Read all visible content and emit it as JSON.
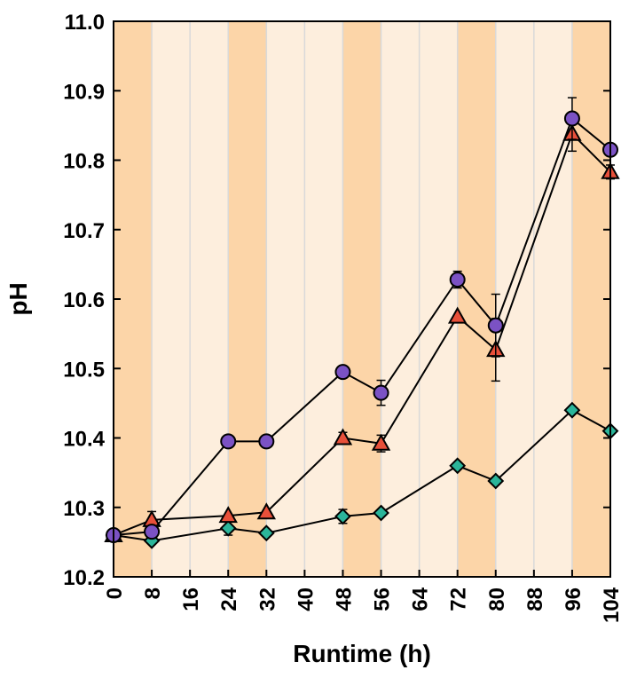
{
  "chart_data": {
    "type": "line",
    "title": "",
    "xlabel": "Runtime (h)",
    "ylabel": "pH",
    "xlim": [
      0,
      104
    ],
    "ylim": [
      10.2,
      11.0
    ],
    "xticks": [
      0,
      8,
      16,
      24,
      32,
      40,
      48,
      56,
      64,
      72,
      80,
      88,
      96,
      104
    ],
    "xtick_labels": [
      "0",
      "8",
      "16",
      "24",
      "32",
      "40",
      "48",
      "56",
      "64",
      "72",
      "80",
      "88",
      "96",
      "104"
    ],
    "yticks": [
      10.2,
      10.3,
      10.4,
      10.5,
      10.6,
      10.7,
      10.8,
      10.9,
      11.0
    ],
    "ytick_labels": [
      "10.2",
      "10.3",
      "10.4",
      "10.5",
      "10.6",
      "10.7",
      "10.8",
      "10.9",
      "11.0"
    ],
    "grid": "vertical lines every 8 h",
    "legend": "none",
    "background_bands": {
      "dark_color": "#fcd5a8",
      "light_color": "#fdeedd",
      "dark_intervals": [
        [
          0,
          8
        ],
        [
          24,
          32
        ],
        [
          48,
          56
        ],
        [
          72,
          80
        ],
        [
          96,
          104
        ]
      ]
    },
    "series": [
      {
        "name": "circles",
        "marker": "circle",
        "color": "#7b52c4",
        "x": [
          0,
          8,
          24,
          32,
          48,
          56,
          72,
          80,
          96,
          104
        ],
        "y": [
          10.26,
          10.265,
          10.395,
          10.395,
          10.495,
          10.465,
          10.628,
          10.562,
          10.86,
          10.815
        ],
        "err": [
          0,
          0,
          0.008,
          0.008,
          0,
          0.018,
          0.012,
          0.045,
          0.03,
          0
        ]
      },
      {
        "name": "triangles",
        "marker": "triangle",
        "color": "#e8503a",
        "x": [
          0,
          8,
          24,
          32,
          48,
          56,
          72,
          80,
          96,
          104
        ],
        "y": [
          10.26,
          10.282,
          10.288,
          10.293,
          10.4,
          10.392,
          10.575,
          10.527,
          10.838,
          10.783
        ],
        "err": [
          0,
          0.012,
          0,
          0,
          0.008,
          0.012,
          0,
          0.045,
          0.025,
          0.01
        ]
      },
      {
        "name": "diamonds",
        "marker": "diamond",
        "color": "#2bb59a",
        "x": [
          0,
          8,
          24,
          32,
          48,
          56,
          72,
          80,
          96,
          104
        ],
        "y": [
          10.26,
          10.252,
          10.27,
          10.263,
          10.287,
          10.292,
          10.36,
          10.338,
          10.44,
          10.41
        ],
        "err": [
          0,
          0,
          0.01,
          0,
          0.01,
          0,
          0,
          0,
          0,
          0
        ]
      }
    ]
  }
}
